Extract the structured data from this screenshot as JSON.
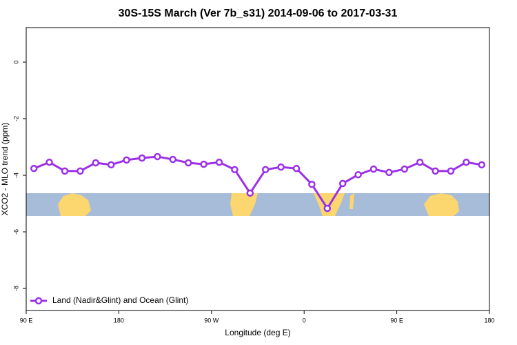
{
  "chart_data": {
    "type": "line",
    "title": "30S-15S March (Ver 7b_s31)   2014-09-06 to 2017-03-31",
    "x_label": "Longitude (deg E)",
    "y_label": "XCO2 - MLO trend (ppm)",
    "xlim": [
      90,
      540
    ],
    "xticks": [
      {
        "value": 90,
        "label": "90 E"
      },
      {
        "value": 180,
        "label": "180"
      },
      {
        "value": 270,
        "label": "90 W"
      },
      {
        "value": 360,
        "label": "0"
      },
      {
        "value": 450,
        "label": "90 E"
      },
      {
        "value": 540,
        "label": "180"
      }
    ],
    "ylim": [
      -8.78,
      1.22
    ],
    "yticks": [
      0,
      -2,
      -4,
      -6,
      -8
    ],
    "legend_position": "bottom-left",
    "series": [
      {
        "name": "Land (Nadir&Glint) and Ocean (Glint)",
        "color": "#9b30e8",
        "x": [
          97.5,
          112.5,
          127.5,
          142.5,
          157.5,
          172.5,
          187.5,
          202.5,
          217.5,
          232.5,
          247.5,
          262.5,
          277.5,
          292.5,
          307.5,
          322.5,
          337.5,
          352.5,
          367.5,
          382.5,
          397.5,
          412.5,
          427.5,
          442.5,
          457.5,
          472.5,
          487.5,
          502.5,
          517.5,
          532.5
        ],
        "values": [
          -3.76,
          -3.54,
          -3.85,
          -3.85,
          -3.56,
          -3.63,
          -3.46,
          -3.39,
          -3.34,
          -3.44,
          -3.56,
          -3.61,
          -3.54,
          -3.8,
          -4.63,
          -3.8,
          -3.71,
          -3.76,
          -4.32,
          -5.17,
          -4.29,
          -3.98,
          -3.78,
          -3.9,
          -3.78,
          -3.54,
          -3.85,
          -3.85,
          -3.54,
          -3.63
        ]
      }
    ]
  }
}
